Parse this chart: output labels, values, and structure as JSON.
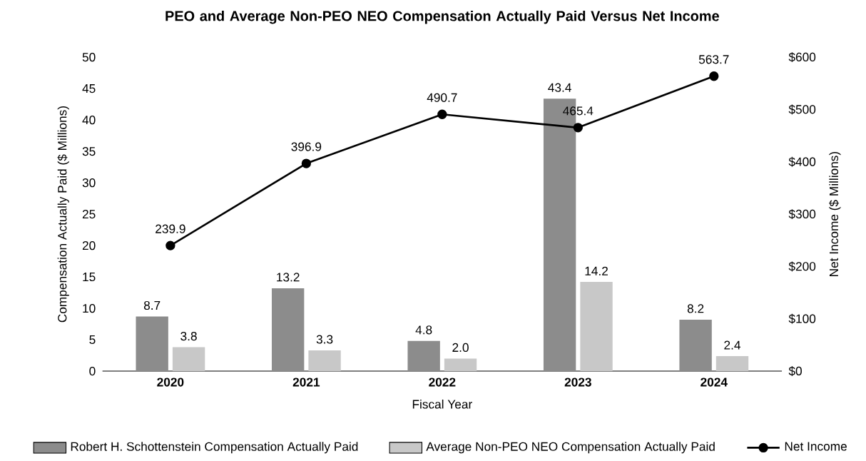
{
  "chart_data": {
    "type": "bar",
    "title": "PEO and Average Non-PEO NEO Compensation Actually Paid Versus Net Income",
    "xlabel": "Fiscal Year",
    "ylabel": "Compensation Actually Paid ($ Millions)",
    "y2label": "Net Income ($ Millions)",
    "categories": [
      "2020",
      "2021",
      "2022",
      "2023",
      "2024"
    ],
    "series": [
      {
        "name": "Robert H. Schottenstein Compensation Actually Paid",
        "color": "#8c8c8c",
        "values": [
          8.7,
          13.2,
          4.8,
          43.4,
          8.2
        ],
        "value_labels": [
          "8.7",
          "13.2",
          "4.8",
          "43.4",
          "8.2"
        ]
      },
      {
        "name": "Average Non-PEO NEO Compensation Actually Paid",
        "color": "#c8c8c8",
        "values": [
          3.8,
          3.3,
          2.0,
          14.2,
          2.4
        ],
        "value_labels": [
          "3.8",
          "3.3",
          "2.0",
          "14.2",
          "2.4"
        ]
      },
      {
        "name": "Net Income",
        "type": "line",
        "axis": "y2",
        "color": "#000000",
        "marker": "circle",
        "values": [
          239.9,
          396.9,
          490.7,
          465.4,
          563.7
        ],
        "value_labels": [
          "239.9",
          "396.9",
          "490.7",
          "465.4",
          "563.7"
        ]
      }
    ],
    "ylim": [
      0,
      50
    ],
    "yticks": [
      0,
      5,
      10,
      15,
      20,
      25,
      30,
      35,
      40,
      45,
      50
    ],
    "y2lim": [
      0,
      600
    ],
    "y2ticks": [
      {
        "value": 0,
        "label": "$0"
      },
      {
        "value": 100,
        "label": "$100"
      },
      {
        "value": 200,
        "label": "$200"
      },
      {
        "value": 300,
        "label": "$300"
      },
      {
        "value": 400,
        "label": "$400"
      },
      {
        "value": 500,
        "label": "$500"
      },
      {
        "value": 600,
        "label": "$600"
      }
    ],
    "legend": "bottom"
  }
}
